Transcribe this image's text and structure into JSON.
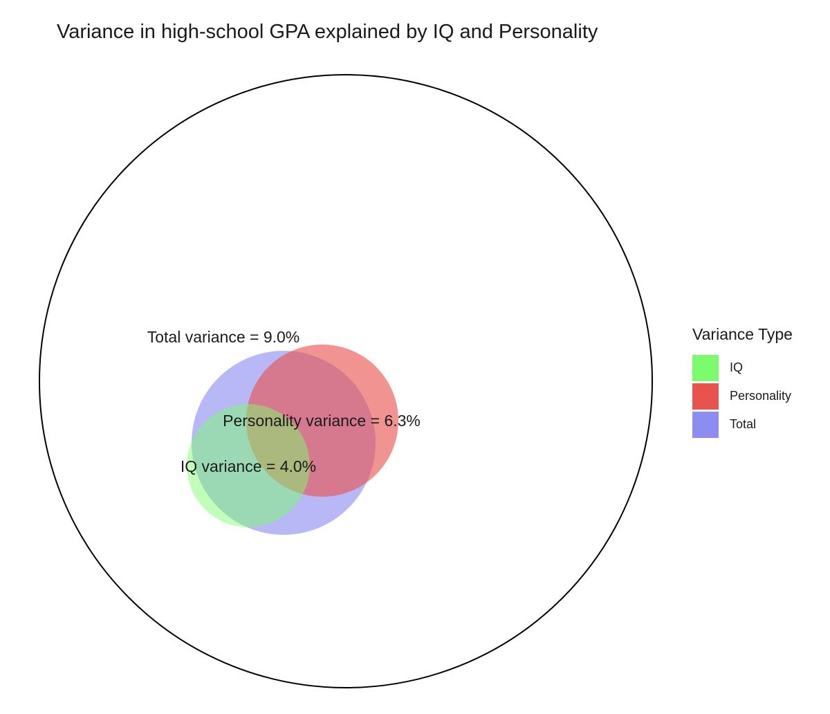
{
  "chart_data": {
    "type": "venn",
    "title": "Variance in high-school GPA explained by IQ and Personality",
    "legend": {
      "title": "Variance Type",
      "position": "right",
      "entries": [
        {
          "name": "IQ",
          "color": "#7CFC6C"
        },
        {
          "name": "Personality",
          "color": "#E8534E"
        },
        {
          "name": "Total",
          "color": "#8C8CF2"
        }
      ]
    },
    "outer_circle_percent": 100,
    "series": [
      {
        "name": "Total",
        "value": 9.0,
        "label": "Total variance = 9.0%"
      },
      {
        "name": "Personality",
        "value": 6.3,
        "label": "Personality variance = 6.3%"
      },
      {
        "name": "IQ",
        "value": 4.0,
        "label": "IQ variance = 4.0%"
      }
    ]
  }
}
